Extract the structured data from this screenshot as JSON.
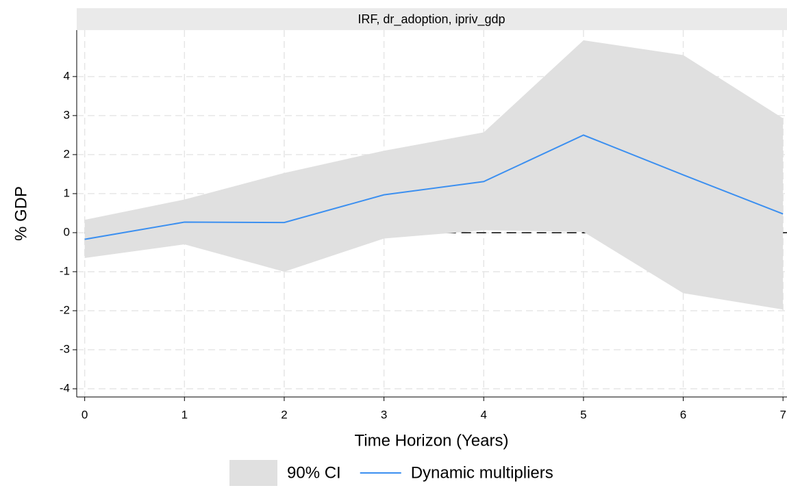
{
  "chart_data": {
    "type": "line",
    "title": "IRF, dr_adoption, ipriv_gdp",
    "x_label": "Time Horizon (Years)",
    "y_label": "% GDP",
    "x": [
      0,
      1,
      2,
      3,
      4,
      5,
      6,
      7
    ],
    "series": [
      {
        "name": "90% CI",
        "color": "#e0e0e0",
        "lower": [
          -0.65,
          -0.3,
          -1.0,
          -0.15,
          0.06,
          0.02,
          -1.55,
          -1.97
        ],
        "upper": [
          0.33,
          0.85,
          1.53,
          2.1,
          2.57,
          4.93,
          4.55,
          2.93
        ]
      },
      {
        "name": "Dynamic multipliers",
        "color": "#3b8ff0",
        "values": [
          -0.17,
          0.27,
          0.26,
          0.97,
          1.31,
          2.5,
          1.48,
          0.48
        ]
      }
    ],
    "hline": 0,
    "xlim": [
      -0.08,
      7.04
    ],
    "ylim": [
      -4.21,
      5.19
    ],
    "xticks": [
      0,
      1,
      2,
      3,
      4,
      5,
      6,
      7
    ],
    "yticks": [
      -4,
      -3,
      -2,
      -1,
      0,
      1,
      2,
      3,
      4
    ],
    "grid": true,
    "legend": "bottom"
  }
}
